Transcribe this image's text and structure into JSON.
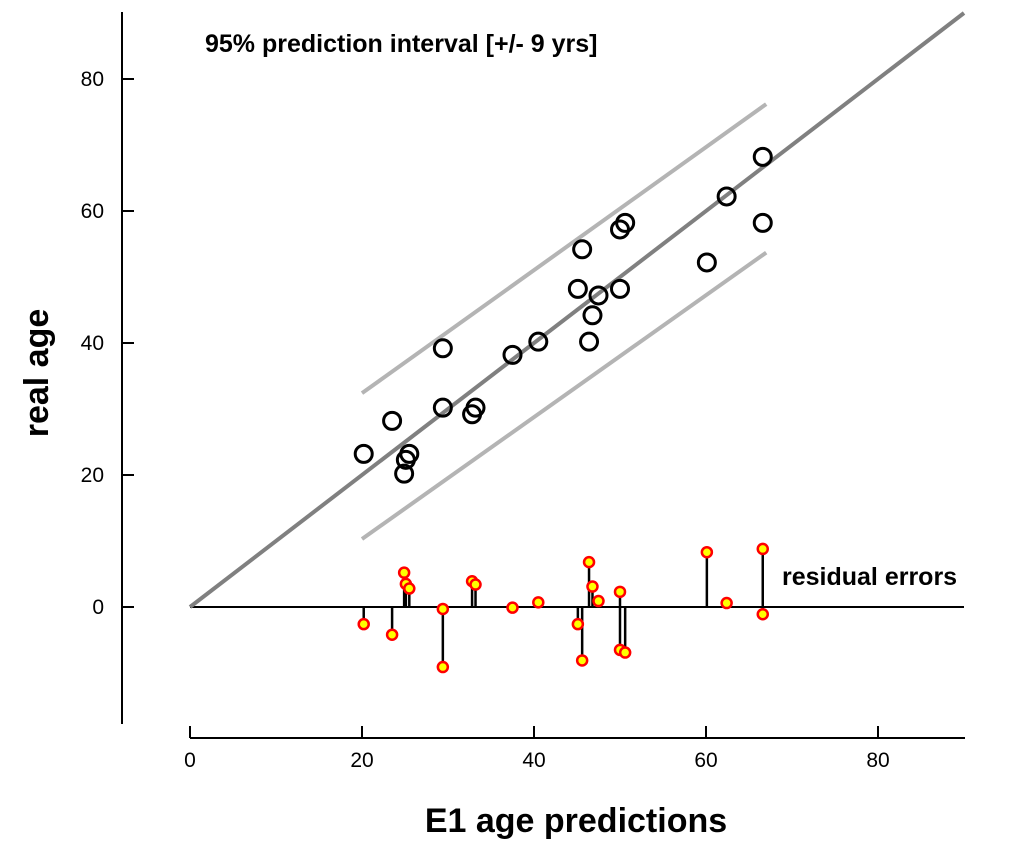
{
  "chart_data": {
    "type": "scatter",
    "title": "95% prediction interval [+/- 9 yrs]",
    "xlabel": "E1  age predictions",
    "ylabel": "real age",
    "xlim": [
      0,
      90
    ],
    "ylim": [
      -18,
      90
    ],
    "x_ticks": [
      0,
      20,
      40,
      60,
      80
    ],
    "y_ticks": [
      0,
      20,
      40,
      60,
      80
    ],
    "grid": false,
    "residual_label": "residual errors",
    "regression_line": {
      "x": [
        0,
        90
      ],
      "y": [
        0,
        90
      ],
      "color": "#808080"
    },
    "prediction_interval": {
      "upper": {
        "x": [
          20,
          67
        ],
        "y": [
          32.4,
          76.2
        ]
      },
      "lower": {
        "x": [
          20,
          67
        ],
        "y": [
          10.3,
          53.7
        ]
      },
      "color": "#b4b4b4"
    },
    "series": [
      {
        "name": "",
        "marker": "open-circle",
        "x": [
          20.2,
          23.5,
          24.9,
          25.1,
          25.5,
          29.4,
          29.4,
          32.8,
          33.2,
          37.5,
          40.5,
          45.1,
          45.6,
          46.4,
          46.8,
          47.5,
          50.0,
          50.0,
          50.6,
          60.1,
          62.4,
          66.6,
          66.6
        ],
        "y": [
          23.2,
          28.2,
          20.2,
          22.3,
          23.2,
          30.2,
          39.2,
          29.2,
          30.2,
          38.2,
          40.2,
          48.2,
          54.2,
          40.2,
          44.2,
          47.2,
          48.2,
          57.2,
          58.2,
          52.2,
          62.2,
          68.2,
          58.2
        ]
      },
      {
        "name": "residual errors",
        "marker": "filled-circle",
        "baseline": 0,
        "x": [
          20.2,
          23.5,
          24.9,
          25.1,
          25.5,
          29.4,
          29.4,
          32.8,
          33.2,
          37.5,
          40.5,
          45.1,
          45.6,
          46.4,
          46.8,
          47.5,
          50.0,
          50.0,
          50.6,
          60.1,
          62.4,
          66.6,
          66.6
        ],
        "y": [
          -2.6,
          -4.2,
          5.2,
          3.5,
          2.8,
          -0.3,
          -9.1,
          3.9,
          3.4,
          -0.1,
          0.7,
          -2.6,
          -8.1,
          6.8,
          3.1,
          0.9,
          2.3,
          -6.5,
          -6.9,
          8.3,
          0.6,
          8.8,
          -1.1
        ]
      }
    ],
    "colors": {
      "axis": "#000000",
      "open_marker": "#000000",
      "residual_fill": "#ffff00",
      "residual_edge": "#ff0000",
      "residual_stem": "#000000"
    }
  }
}
